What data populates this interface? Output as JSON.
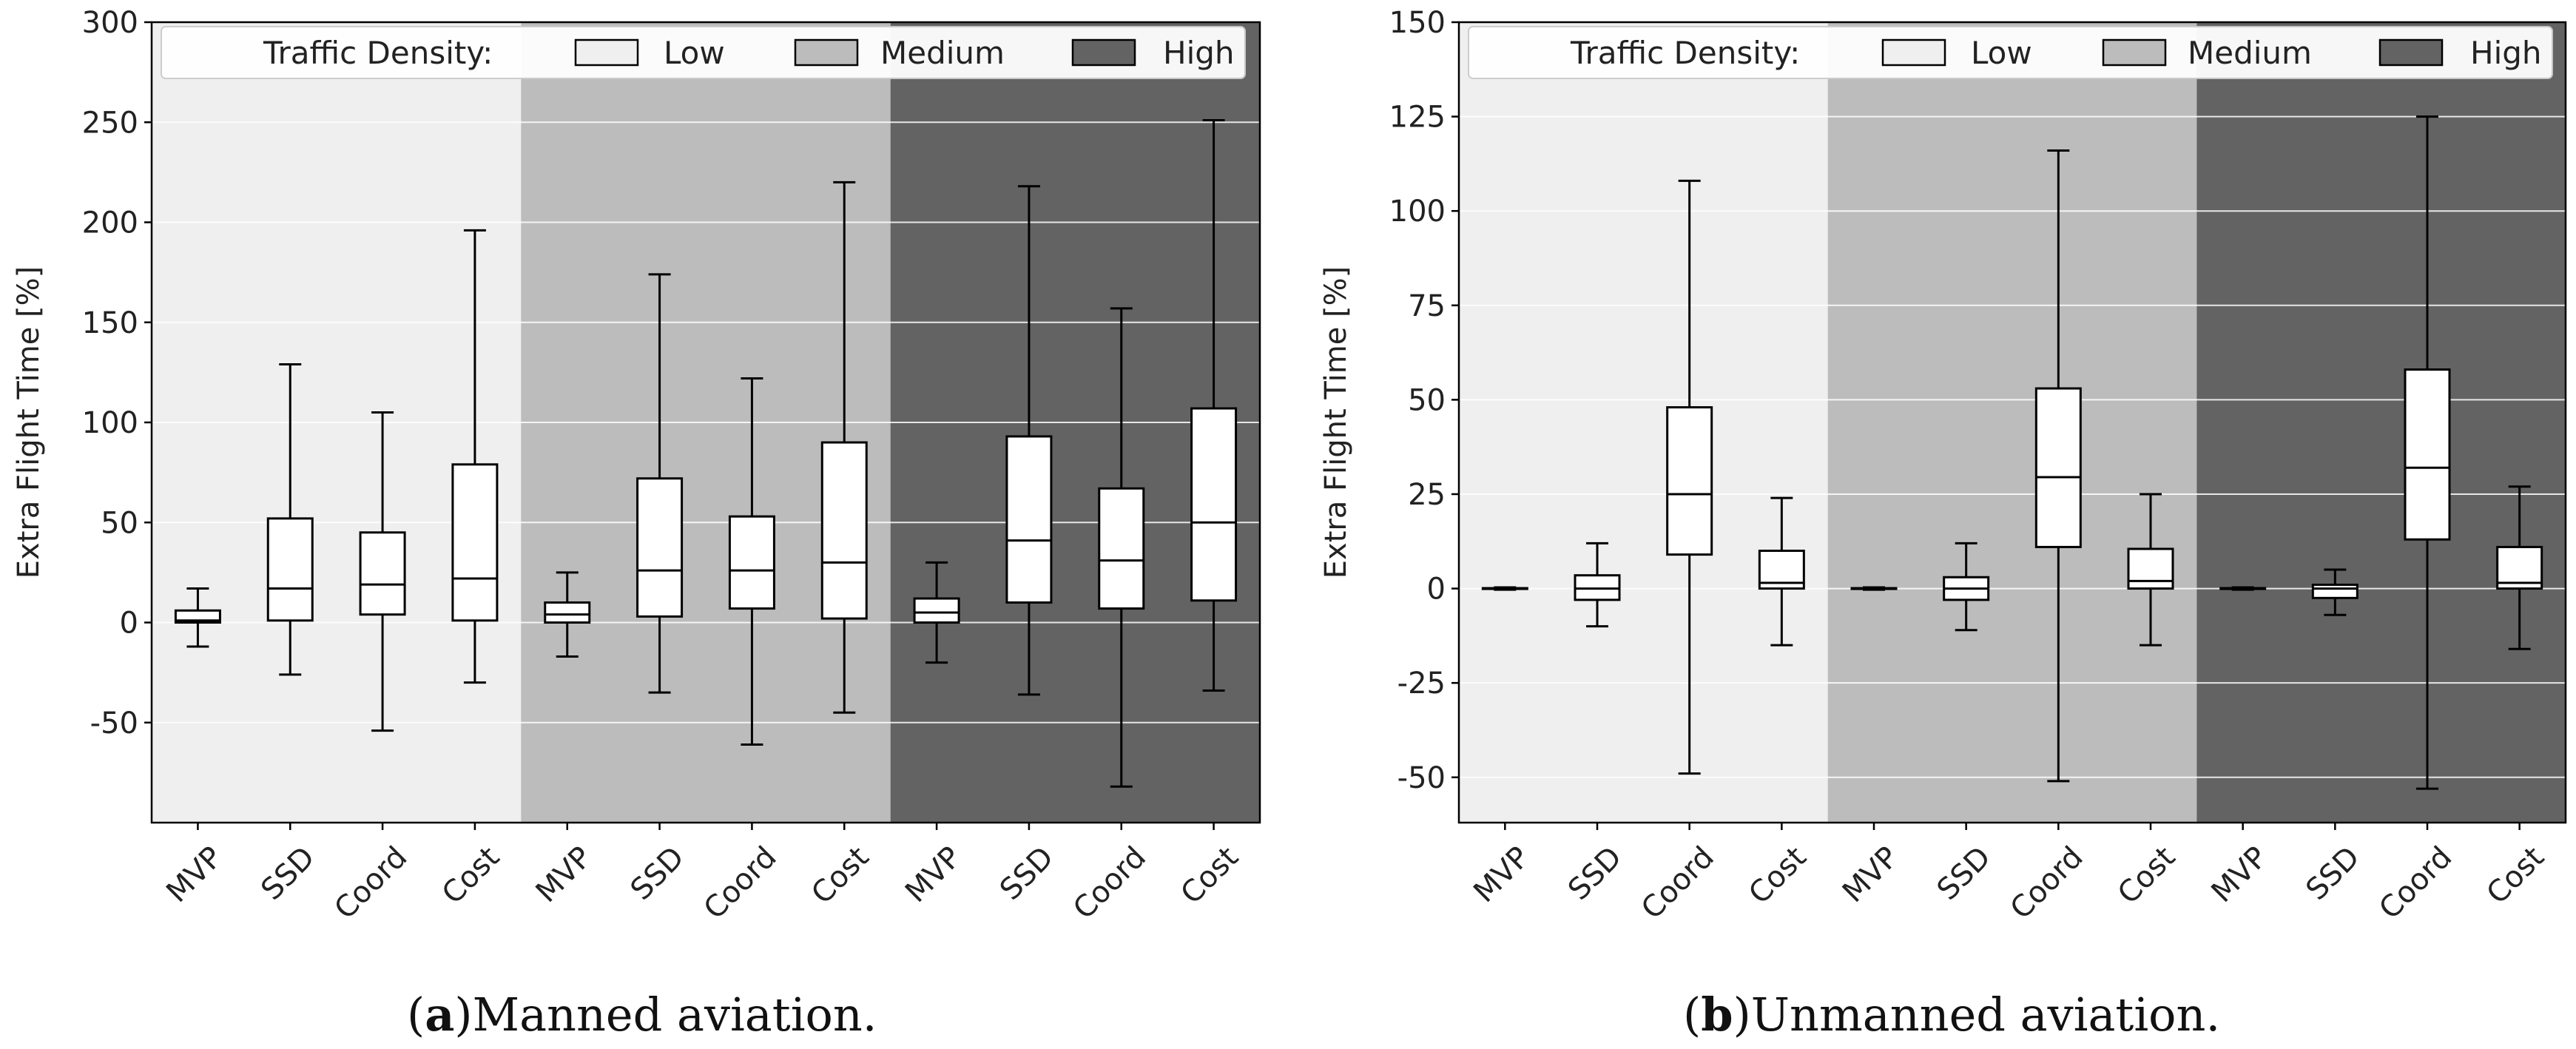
{
  "figure": {
    "captions": [
      {
        "letter": "a",
        "prefix": "(",
        "suffix": ")",
        "text": "Manned aviation."
      },
      {
        "letter": "b",
        "prefix": "(",
        "suffix": ")",
        "text": "Unmanned aviation."
      }
    ],
    "colors": {
      "low_bg": "#efefef",
      "medium_bg": "#bcbcbc",
      "high_bg": "#636363",
      "box_fill": "#ffffff",
      "line": "#000000",
      "grid": "#ffffff"
    }
  },
  "chart_data": [
    {
      "type": "box",
      "title": "Manned aviation.",
      "ylabel": "Extra Flight Time [%]",
      "ylim": [
        -100,
        300
      ],
      "yticks": [
        300,
        250,
        200,
        150,
        100,
        50,
        0,
        -50
      ],
      "categories": [
        "MVP",
        "SSD",
        "Coord",
        "Cost",
        "MVP",
        "SSD",
        "Coord",
        "Cost",
        "MVP",
        "SSD",
        "Coord",
        "Cost"
      ],
      "legend": {
        "title": "Traffic Density:",
        "entries": [
          "Low",
          "Medium",
          "High"
        ],
        "placement": "top"
      },
      "groups": [
        {
          "name": "Low",
          "boxes": [
            {
              "method": "MVP",
              "whislo": -12,
              "q1": 0,
              "med": 1,
              "q3": 6,
              "whishi": 17
            },
            {
              "method": "SSD",
              "whislo": -26,
              "q1": 1,
              "med": 17,
              "q3": 52,
              "whishi": 129
            },
            {
              "method": "Coord",
              "whislo": -54,
              "q1": 4,
              "med": 19,
              "q3": 45,
              "whishi": 105
            },
            {
              "method": "Cost",
              "whislo": -30,
              "q1": 1,
              "med": 22,
              "q3": 79,
              "whishi": 196
            }
          ]
        },
        {
          "name": "Medium",
          "boxes": [
            {
              "method": "MVP",
              "whislo": -17,
              "q1": 0,
              "med": 4,
              "q3": 10,
              "whishi": 25
            },
            {
              "method": "SSD",
              "whislo": -35,
              "q1": 3,
              "med": 26,
              "q3": 72,
              "whishi": 174
            },
            {
              "method": "Coord",
              "whislo": -61,
              "q1": 7,
              "med": 26,
              "q3": 53,
              "whishi": 122
            },
            {
              "method": "Cost",
              "whislo": -45,
              "q1": 2,
              "med": 30,
              "q3": 90,
              "whishi": 220
            }
          ]
        },
        {
          "name": "High",
          "boxes": [
            {
              "method": "MVP",
              "whislo": -20,
              "q1": 0,
              "med": 5,
              "q3": 12,
              "whishi": 30
            },
            {
              "method": "SSD",
              "whislo": -36,
              "q1": 10,
              "med": 41,
              "q3": 93,
              "whishi": 218
            },
            {
              "method": "Coord",
              "whislo": -82,
              "q1": 7,
              "med": 31,
              "q3": 67,
              "whishi": 157
            },
            {
              "method": "Cost",
              "whislo": -34,
              "q1": 11,
              "med": 50,
              "q3": 107,
              "whishi": 251
            }
          ]
        }
      ]
    },
    {
      "type": "box",
      "title": "Unmanned aviation.",
      "ylabel": "Extra Flight Time [%]",
      "ylim": [
        -62,
        150
      ],
      "yticks": [
        150,
        125,
        100,
        75,
        50,
        25,
        0,
        -25,
        -50
      ],
      "categories": [
        "MVP",
        "SSD",
        "Coord",
        "Cost",
        "MVP",
        "SSD",
        "Coord",
        "Cost",
        "MVP",
        "SSD",
        "Coord",
        "Cost"
      ],
      "legend": {
        "title": "Traffic Density:",
        "entries": [
          "Low",
          "Medium",
          "High"
        ],
        "placement": "top"
      },
      "groups": [
        {
          "name": "Low",
          "boxes": [
            {
              "method": "MVP",
              "whislo": -0.3,
              "q1": -0.1,
              "med": 0,
              "q3": 0.1,
              "whishi": 0.3
            },
            {
              "method": "SSD",
              "whislo": -10,
              "q1": -3,
              "med": 0,
              "q3": 3.5,
              "whishi": 12
            },
            {
              "method": "Coord",
              "whislo": -49,
              "q1": 9,
              "med": 25,
              "q3": 48,
              "whishi": 108
            },
            {
              "method": "Cost",
              "whislo": -15,
              "q1": 0,
              "med": 1.5,
              "q3": 10,
              "whishi": 24
            }
          ]
        },
        {
          "name": "Medium",
          "boxes": [
            {
              "method": "MVP",
              "whislo": -0.3,
              "q1": -0.1,
              "med": 0,
              "q3": 0.1,
              "whishi": 0.3
            },
            {
              "method": "SSD",
              "whislo": -11,
              "q1": -3,
              "med": 0,
              "q3": 3,
              "whishi": 12
            },
            {
              "method": "Coord",
              "whislo": -51,
              "q1": 11,
              "med": 29.5,
              "q3": 53,
              "whishi": 116
            },
            {
              "method": "Cost",
              "whislo": -15,
              "q1": 0,
              "med": 2,
              "q3": 10.5,
              "whishi": 25
            }
          ]
        },
        {
          "name": "High",
          "boxes": [
            {
              "method": "MVP",
              "whislo": -0.3,
              "q1": -0.1,
              "med": 0,
              "q3": 0.1,
              "whishi": 0.3
            },
            {
              "method": "SSD",
              "whislo": -7,
              "q1": -2.5,
              "med": 0,
              "q3": 1,
              "whishi": 5
            },
            {
              "method": "Coord",
              "whislo": -53,
              "q1": 13,
              "med": 32,
              "q3": 58,
              "whishi": 125
            },
            {
              "method": "Cost",
              "whislo": -16,
              "q1": 0,
              "med": 1.5,
              "q3": 11,
              "whishi": 27
            }
          ]
        }
      ]
    }
  ]
}
